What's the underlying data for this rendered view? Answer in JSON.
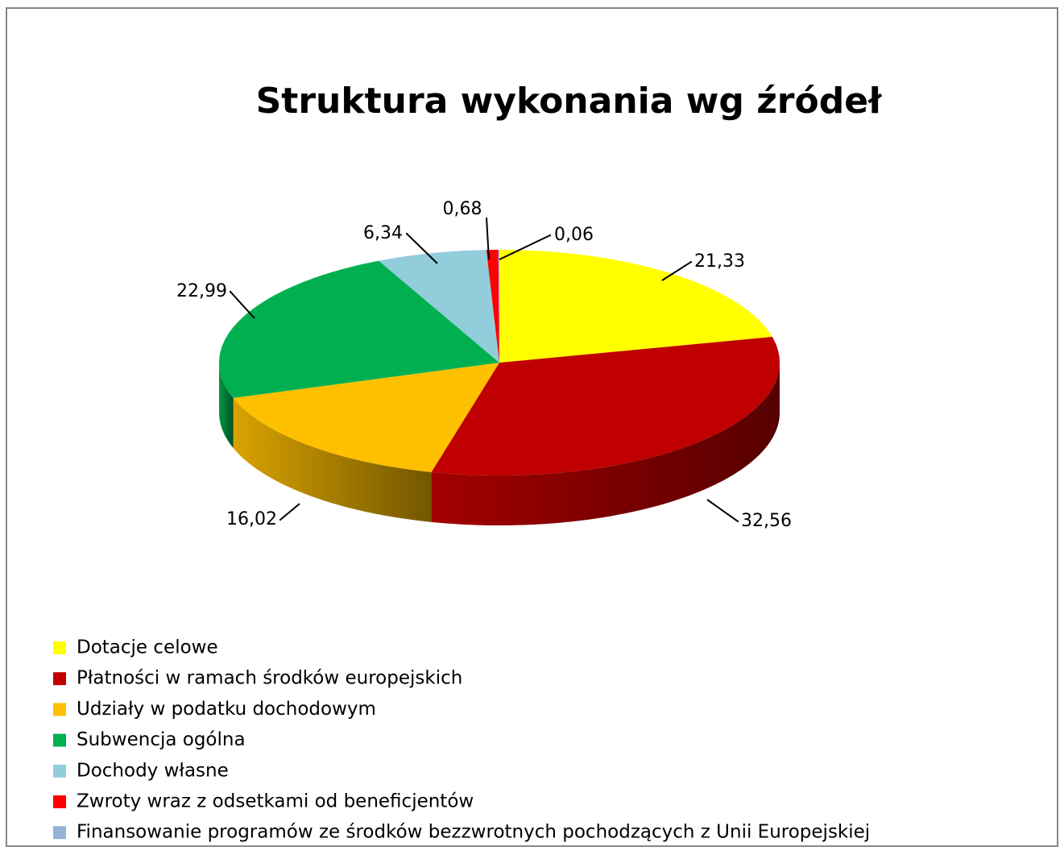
{
  "chart_data": {
    "type": "pie",
    "title": "Struktura wykonania wg źródeł",
    "categories": [
      "Dotacje celowe",
      "Płatności w ramach środków europejskich",
      "Udziały w podatku dochodowym",
      "Subwencja ogólna",
      "Dochody własne",
      "Zwroty wraz z odsetkami od beneficjentów",
      "Finansowanie programów ze środków bezzwrotnych pochodzących z Unii Europejskiej"
    ],
    "values": [
      21.33,
      32.56,
      16.02,
      22.99,
      6.34,
      0.68,
      0.06
    ],
    "value_labels": [
      "21,33",
      "32,56",
      "16,02",
      "22,99",
      "6,34",
      "0,68",
      "0,06"
    ],
    "colors": [
      "#ffff00",
      "#c00000",
      "#ffc000",
      "#00b050",
      "#92cddc",
      "#ff0000",
      "#95b3d7"
    ]
  }
}
